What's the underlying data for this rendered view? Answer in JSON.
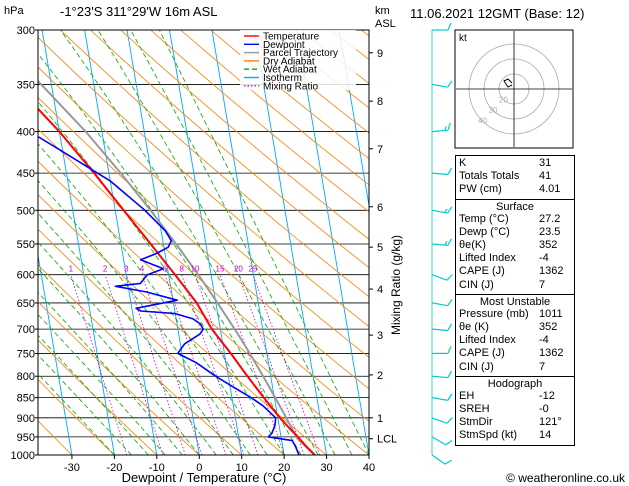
{
  "header": {
    "hpa_label": "hPa",
    "location": "-1°23'S 311°29'W 16m ASL",
    "km_label": "km",
    "asl_label": "ASL",
    "datetime": "11.06.2021 12GMT (Base: 12)"
  },
  "footer": {
    "credit": "© weatheronline.co.uk"
  },
  "colors": {
    "temperature": "#ff0000",
    "dewpoint": "#0000ff",
    "parcel": "#999999",
    "dry_adiabat": "#ff8000",
    "wet_adiabat": "#00aa00",
    "isotherm": "#00aaff",
    "mixing_ratio": "#cc00cc",
    "wind_barb": "#00cccc"
  },
  "chart_data": {
    "type": "skew-t",
    "xlabel": "Dewpoint / Temperature (°C)",
    "ylabel_right": "Mixing Ratio (g/kg)",
    "x_ticks": [
      -30,
      -20,
      -10,
      0,
      10,
      20,
      30,
      40
    ],
    "xlim": [
      -38,
      40
    ],
    "pressure_ticks": [
      300,
      350,
      400,
      450,
      500,
      550,
      600,
      650,
      700,
      750,
      800,
      850,
      900,
      950,
      1000
    ],
    "ylim": [
      1000,
      300
    ],
    "height_ticks": [
      {
        "label": "9",
        "p": 320
      },
      {
        "label": "8",
        "p": 367
      },
      {
        "label": "7",
        "p": 420
      },
      {
        "label": "6",
        "p": 495
      },
      {
        "label": "5",
        "p": 555
      },
      {
        "label": "4",
        "p": 625
      },
      {
        "label": "3",
        "p": 712
      },
      {
        "label": "2",
        "p": 797
      },
      {
        "label": "1",
        "p": 900
      },
      {
        "label": "LCL",
        "p": 955
      }
    ],
    "mixing_ratio_labels": [
      "1",
      "2",
      "3",
      "4",
      "6",
      "8",
      "10",
      "15",
      "20",
      "25"
    ],
    "mixing_ratios": [
      1,
      2,
      3,
      4,
      6,
      8,
      10,
      15,
      20,
      25
    ],
    "legend": [
      "Temperature",
      "Dewpoint",
      "Parcel Trajectory",
      "Dry Adiabat",
      "Wet Adiabat",
      "Isotherm",
      "Mixing Ratio"
    ],
    "series": [
      {
        "name": "Temperature",
        "p": [
          1000,
          975,
          950,
          925,
          900,
          850,
          800,
          750,
          700,
          650,
          600,
          550,
          500,
          450,
          400,
          370,
          350,
          300
        ],
        "t": [
          27.2,
          25.5,
          24,
          22.2,
          20.5,
          17.5,
          14.5,
          11.5,
          8,
          5.5,
          1.5,
          -3,
          -8,
          -13.5,
          -20,
          -25,
          -29,
          -39
        ]
      },
      {
        "name": "Dewpoint",
        "p": [
          1000,
          975,
          960,
          950,
          940,
          920,
          900,
          870,
          850,
          820,
          800,
          770,
          750,
          730,
          710,
          700,
          690,
          680,
          670,
          665,
          660,
          645,
          630,
          620,
          615,
          600,
          590,
          575,
          565,
          555,
          545,
          530,
          500,
          460,
          420,
          400,
          350,
          320,
          300
        ],
        "t": [
          23.5,
          23,
          22.5,
          17,
          18,
          19,
          19.5,
          17,
          14.5,
          10,
          7,
          3,
          -1,
          1,
          5,
          6,
          5.5,
          4,
          0,
          -8,
          -9,
          1,
          -6,
          -13,
          -7,
          -5,
          -1,
          -6,
          -2,
          1,
          2,
          1,
          -3,
          -10,
          -21,
          -27,
          -37,
          -45,
          -38
        ]
      },
      {
        "name": "Parcel Trajectory",
        "p": [
          1000,
          955,
          900,
          850,
          800,
          750,
          700,
          650,
          600,
          550,
          500,
          450,
          400,
          350,
          300
        ],
        "t": [
          27.2,
          23.8,
          22,
          20.2,
          18.2,
          16,
          13.4,
          10.4,
          7,
          3,
          -1.7,
          -7.2,
          -13.8,
          -22.4,
          -33
        ]
      }
    ]
  },
  "winds": [
    {
      "p": 300,
      "dir": 90,
      "spd": 10
    },
    {
      "p": 350,
      "dir": 100,
      "spd": 10
    },
    {
      "p": 400,
      "dir": 85,
      "spd": 15
    },
    {
      "p": 450,
      "dir": 95,
      "spd": 10
    },
    {
      "p": 500,
      "dir": 100,
      "spd": 15
    },
    {
      "p": 550,
      "dir": 95,
      "spd": 15
    },
    {
      "p": 600,
      "dir": 110,
      "spd": 10
    },
    {
      "p": 650,
      "dir": 100,
      "spd": 10
    },
    {
      "p": 700,
      "dir": 95,
      "spd": 10
    },
    {
      "p": 750,
      "dir": 90,
      "spd": 10
    },
    {
      "p": 800,
      "dir": 95,
      "spd": 10
    },
    {
      "p": 850,
      "dir": 100,
      "spd": 10
    },
    {
      "p": 900,
      "dir": 110,
      "spd": 10
    },
    {
      "p": 950,
      "dir": 120,
      "spd": 10
    },
    {
      "p": 1000,
      "dir": 125,
      "spd": 10
    }
  ],
  "hodograph": {
    "label": "kt",
    "ring_labels": [
      "20",
      "30",
      "40"
    ],
    "points": [
      [
        -1,
        3
      ],
      [
        -3,
        5
      ],
      [
        -5,
        4
      ],
      [
        -3,
        1
      ],
      [
        -1,
        2
      ]
    ]
  },
  "indices": {
    "top": [
      {
        "label": "K",
        "value": "31"
      },
      {
        "label": "Totals Totals",
        "value": "41"
      },
      {
        "label": "PW (cm)",
        "value": "4.01"
      }
    ],
    "surface": {
      "title": "Surface",
      "rows": [
        {
          "label": "Temp (°C)",
          "value": "27.2"
        },
        {
          "label": "Dewp (°C)",
          "value": "23.5"
        },
        {
          "label": "θe(K)",
          "value": "352"
        },
        {
          "label": "Lifted Index",
          "value": "-4"
        },
        {
          "label": "CAPE (J)",
          "value": "1362"
        },
        {
          "label": "CIN (J)",
          "value": "7"
        }
      ]
    },
    "most_unstable": {
      "title": "Most Unstable",
      "rows": [
        {
          "label": "Pressure (mb)",
          "value": "1011"
        },
        {
          "label": "θe (K)",
          "value": "352"
        },
        {
          "label": "Lifted Index",
          "value": "-4"
        },
        {
          "label": "CAPE (J)",
          "value": "1362"
        },
        {
          "label": "CIN (J)",
          "value": "7"
        }
      ]
    },
    "hodograph_table": {
      "title": "Hodograph",
      "rows": [
        {
          "label": "EH",
          "value": "-12"
        },
        {
          "label": "SREH",
          "value": "-0"
        },
        {
          "label": "StmDir",
          "value": "121°"
        },
        {
          "label": "StmSpd (kt)",
          "value": "14"
        }
      ]
    }
  }
}
